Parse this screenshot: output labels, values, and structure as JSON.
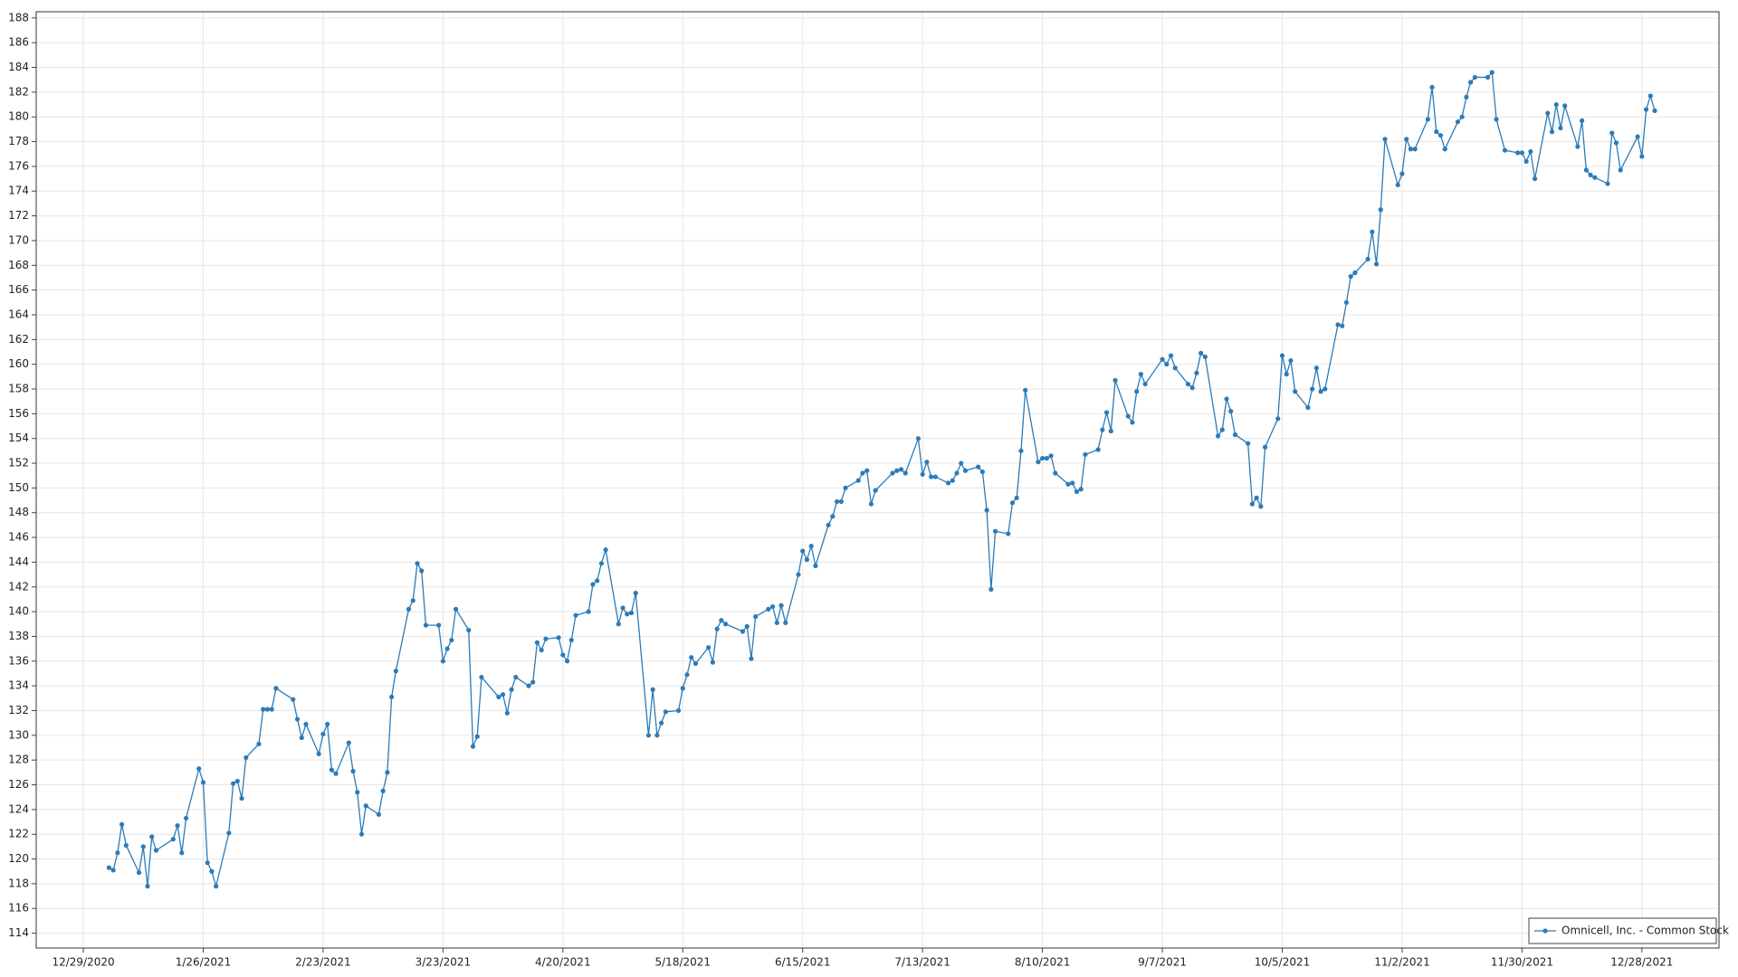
{
  "chart_data": {
    "type": "line",
    "x": [
      "1/4/2021",
      "1/5/2021",
      "1/6/2021",
      "1/7/2021",
      "1/8/2021",
      "1/11/2021",
      "1/12/2021",
      "1/13/2021",
      "1/14/2021",
      "1/15/2021",
      "1/19/2021",
      "1/20/2021",
      "1/21/2021",
      "1/22/2021",
      "1/25/2021",
      "1/26/2021",
      "1/27/2021",
      "1/28/2021",
      "1/29/2021",
      "2/1/2021",
      "2/2/2021",
      "2/3/2021",
      "2/4/2021",
      "2/5/2021",
      "2/8/2021",
      "2/9/2021",
      "2/10/2021",
      "2/11/2021",
      "2/12/2021",
      "2/16/2021",
      "2/17/2021",
      "2/18/2021",
      "2/19/2021",
      "2/22/2021",
      "2/23/2021",
      "2/24/2021",
      "2/25/2021",
      "2/26/2021",
      "3/1/2021",
      "3/2/2021",
      "3/3/2021",
      "3/4/2021",
      "3/5/2021",
      "3/8/2021",
      "3/9/2021",
      "3/10/2021",
      "3/11/2021",
      "3/12/2021",
      "3/15/2021",
      "3/16/2021",
      "3/17/2021",
      "3/18/2021",
      "3/19/2021",
      "3/22/2021",
      "3/23/2021",
      "3/24/2021",
      "3/25/2021",
      "3/26/2021",
      "3/29/2021",
      "3/30/2021",
      "3/31/2021",
      "4/1/2021",
      "4/5/2021",
      "4/6/2021",
      "4/7/2021",
      "4/8/2021",
      "4/9/2021",
      "4/12/2021",
      "4/13/2021",
      "4/14/2021",
      "4/15/2021",
      "4/16/2021",
      "4/19/2021",
      "4/20/2021",
      "4/21/2021",
      "4/22/2021",
      "4/23/2021",
      "4/26/2021",
      "4/27/2021",
      "4/28/2021",
      "4/29/2021",
      "4/30/2021",
      "5/3/2021",
      "5/4/2021",
      "5/5/2021",
      "5/6/2021",
      "5/7/2021",
      "5/10/2021",
      "5/11/2021",
      "5/12/2021",
      "5/13/2021",
      "5/14/2021",
      "5/17/2021",
      "5/18/2021",
      "5/19/2021",
      "5/20/2021",
      "5/21/2021",
      "5/24/2021",
      "5/25/2021",
      "5/26/2021",
      "5/27/2021",
      "5/28/2021",
      "6/1/2021",
      "6/2/2021",
      "6/3/2021",
      "6/4/2021",
      "6/7/2021",
      "6/8/2021",
      "6/9/2021",
      "6/10/2021",
      "6/11/2021",
      "6/14/2021",
      "6/15/2021",
      "6/16/2021",
      "6/17/2021",
      "6/18/2021",
      "6/21/2021",
      "6/22/2021",
      "6/23/2021",
      "6/24/2021",
      "6/25/2021",
      "6/28/2021",
      "6/29/2021",
      "6/30/2021",
      "7/1/2021",
      "7/2/2021",
      "7/6/2021",
      "7/7/2021",
      "7/8/2021",
      "7/9/2021",
      "7/12/2021",
      "7/13/2021",
      "7/14/2021",
      "7/15/2021",
      "7/16/2021",
      "7/19/2021",
      "7/20/2021",
      "7/21/2021",
      "7/22/2021",
      "7/23/2021",
      "7/26/2021",
      "7/27/2021",
      "7/28/2021",
      "7/29/2021",
      "7/30/2021",
      "8/2/2021",
      "8/3/2021",
      "8/4/2021",
      "8/5/2021",
      "8/6/2021",
      "8/9/2021",
      "8/10/2021",
      "8/11/2021",
      "8/12/2021",
      "8/13/2021",
      "8/16/2021",
      "8/17/2021",
      "8/18/2021",
      "8/19/2021",
      "8/20/2021",
      "8/23/2021",
      "8/24/2021",
      "8/25/2021",
      "8/26/2021",
      "8/27/2021",
      "8/30/2021",
      "8/31/2021",
      "9/1/2021",
      "9/2/2021",
      "9/3/2021",
      "9/7/2021",
      "9/8/2021",
      "9/9/2021",
      "9/10/2021",
      "9/13/2021",
      "9/14/2021",
      "9/15/2021",
      "9/16/2021",
      "9/17/2021",
      "9/20/2021",
      "9/21/2021",
      "9/22/2021",
      "9/23/2021",
      "9/24/2021",
      "9/27/2021",
      "9/28/2021",
      "9/29/2021",
      "9/30/2021",
      "10/1/2021",
      "10/4/2021",
      "10/5/2021",
      "10/6/2021",
      "10/7/2021",
      "10/8/2021",
      "10/11/2021",
      "10/12/2021",
      "10/13/2021",
      "10/14/2021",
      "10/15/2021",
      "10/18/2021",
      "10/19/2021",
      "10/20/2021",
      "10/21/2021",
      "10/22/2021",
      "10/25/2021",
      "10/26/2021",
      "10/27/2021",
      "10/28/2021",
      "10/29/2021",
      "11/1/2021",
      "11/2/2021",
      "11/3/2021",
      "11/4/2021",
      "11/5/2021",
      "11/8/2021",
      "11/9/2021",
      "11/10/2021",
      "11/11/2021",
      "11/12/2021",
      "11/15/2021",
      "11/16/2021",
      "11/17/2021",
      "11/18/2021",
      "11/19/2021",
      "11/22/2021",
      "11/23/2021",
      "11/24/2021",
      "11/26/2021",
      "11/29/2021",
      "11/30/2021",
      "12/1/2021",
      "12/2/2021",
      "12/3/2021",
      "12/6/2021",
      "12/7/2021",
      "12/8/2021",
      "12/9/2021",
      "12/10/2021",
      "12/13/2021",
      "12/14/2021",
      "12/15/2021",
      "12/16/2021",
      "12/17/2021",
      "12/20/2021",
      "12/21/2021",
      "12/22/2021",
      "12/23/2021",
      "12/27/2021",
      "12/28/2021",
      "12/29/2021",
      "12/30/2021",
      "12/31/2021"
    ],
    "series": [
      {
        "name": "Omnicell, Inc. - Common Stock",
        "color": "#2b7bb9",
        "values": [
          119.3,
          119.1,
          120.5,
          122.8,
          121.1,
          118.9,
          121.0,
          117.8,
          121.8,
          120.7,
          121.6,
          122.7,
          120.5,
          123.3,
          127.3,
          126.2,
          119.7,
          119.0,
          117.8,
          122.1,
          126.1,
          126.3,
          124.9,
          128.2,
          129.3,
          132.1,
          132.1,
          132.1,
          133.8,
          132.9,
          131.3,
          129.8,
          130.9,
          128.5,
          130.1,
          130.9,
          127.2,
          126.9,
          129.4,
          127.1,
          125.4,
          122.0,
          124.3,
          123.6,
          125.5,
          127.0,
          133.1,
          135.2,
          140.2,
          140.9,
          143.9,
          143.3,
          138.9,
          138.9,
          136.0,
          137.0,
          137.7,
          140.2,
          138.5,
          129.1,
          129.9,
          134.7,
          133.1,
          133.3,
          131.8,
          133.7,
          134.7,
          134.0,
          134.3,
          137.5,
          136.9,
          137.8,
          137.9,
          136.5,
          136.0,
          137.7,
          139.7,
          140.0,
          142.2,
          142.5,
          143.9,
          145.0,
          139.0,
          140.3,
          139.8,
          139.9,
          141.5,
          130.0,
          133.7,
          130.0,
          131.0,
          131.9,
          132.0,
          133.8,
          134.9,
          136.3,
          135.8,
          137.1,
          135.9,
          138.6,
          139.3,
          139.0,
          138.4,
          138.8,
          136.2,
          139.6,
          140.2,
          140.4,
          139.1,
          140.5,
          139.1,
          143.0,
          144.9,
          144.2,
          145.3,
          143.7,
          147.0,
          147.7,
          148.9,
          148.9,
          150.0,
          150.6,
          151.2,
          151.4,
          148.7,
          149.8,
          151.2,
          151.4,
          151.5,
          151.2,
          154.0,
          151.1,
          152.1,
          150.9,
          150.9,
          150.4,
          150.6,
          151.2,
          152.0,
          151.4,
          151.7,
          151.3,
          148.2,
          141.8,
          146.5,
          146.3,
          148.8,
          149.2,
          153.0,
          157.9,
          152.1,
          152.4,
          152.4,
          152.6,
          151.2,
          150.3,
          150.4,
          149.7,
          149.9,
          152.7,
          153.1,
          154.7,
          156.1,
          154.6,
          158.7,
          155.8,
          155.3,
          157.8,
          159.2,
          158.4,
          160.4,
          160.0,
          160.7,
          159.7,
          158.4,
          158.1,
          159.3,
          160.9,
          160.6,
          154.2,
          154.7,
          157.2,
          156.2,
          154.3,
          153.6,
          148.7,
          149.2,
          148.5,
          153.3,
          155.6,
          160.7,
          159.2,
          160.3,
          157.8,
          156.5,
          158.0,
          159.7,
          157.8,
          158.0,
          163.2,
          163.1,
          165.0,
          167.1,
          167.4,
          168.5,
          170.7,
          168.1,
          172.5,
          178.2,
          174.5,
          175.4,
          178.2,
          177.4,
          177.4,
          179.8,
          182.4,
          178.8,
          178.5,
          177.4,
          179.6,
          180.0,
          181.6,
          182.8,
          183.2,
          183.2,
          183.6,
          179.8,
          177.3,
          177.1,
          177.1,
          176.4,
          177.2,
          175.0,
          180.3,
          178.8,
          181.0,
          179.1,
          180.9,
          177.6,
          179.7,
          175.7,
          175.3,
          175.1,
          174.6,
          178.7,
          177.9,
          175.7,
          178.4,
          176.8,
          180.6,
          181.7,
          180.5
        ]
      }
    ],
    "xlim": [
      "12/18/2020",
      "1/15/2022"
    ],
    "xticks": [
      "12/29/2020",
      "1/26/2021",
      "2/23/2021",
      "3/23/2021",
      "4/20/2021",
      "5/18/2021",
      "6/15/2021",
      "7/13/2021",
      "8/10/2021",
      "9/7/2021",
      "10/5/2021",
      "11/2/2021",
      "11/30/2021",
      "12/28/2021"
    ],
    "ylim": [
      112.8,
      188.5
    ],
    "yticks": [
      114,
      116,
      118,
      120,
      122,
      124,
      126,
      128,
      130,
      132,
      134,
      136,
      138,
      140,
      142,
      144,
      146,
      148,
      150,
      152,
      154,
      156,
      158,
      160,
      162,
      164,
      166,
      168,
      170,
      172,
      174,
      176,
      178,
      180,
      182,
      184,
      186,
      188
    ],
    "grid": true,
    "legend": "bottom-right"
  }
}
